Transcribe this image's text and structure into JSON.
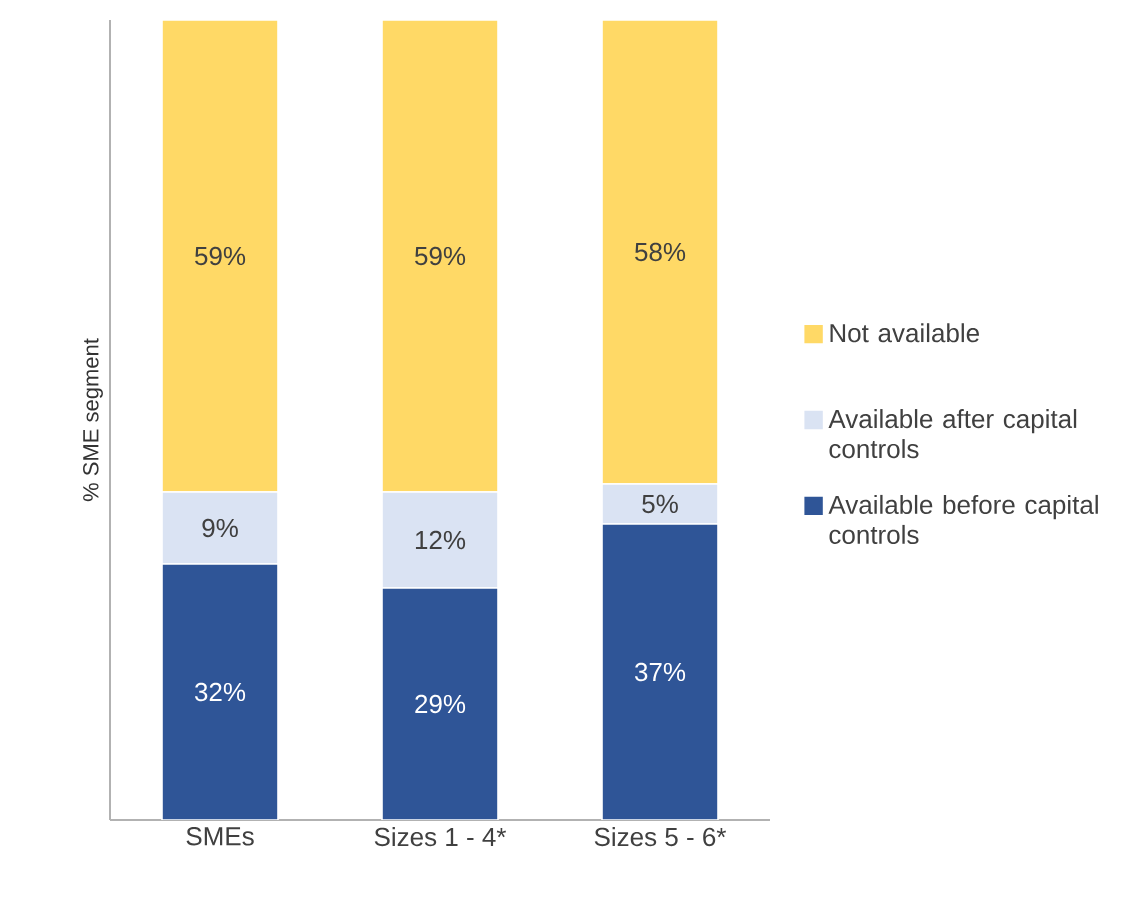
{
  "chart_data": {
    "type": "bar",
    "stacked": true,
    "ylabel": "% SME segment",
    "categories": [
      "SMEs",
      "Sizes 1 - 4*",
      "Sizes 5 - 6*"
    ],
    "tick_labels": "x",
    "legend": "right",
    "series": [
      {
        "name": "Available before capital controls",
        "color": "#2f5597",
        "values": [
          32,
          29,
          37
        ],
        "value_labels": [
          "32%",
          "29%",
          "37%"
        ]
      },
      {
        "name": "Available after capital controls",
        "color": "#dae3f3",
        "values": [
          9,
          12,
          5
        ],
        "value_labels": [
          "9%",
          "12%",
          "5%"
        ]
      },
      {
        "name": "Not available",
        "color": "#ffd966",
        "values": [
          59,
          59,
          58
        ],
        "value_labels": [
          "59%",
          "59%",
          "58%"
        ]
      }
    ]
  }
}
